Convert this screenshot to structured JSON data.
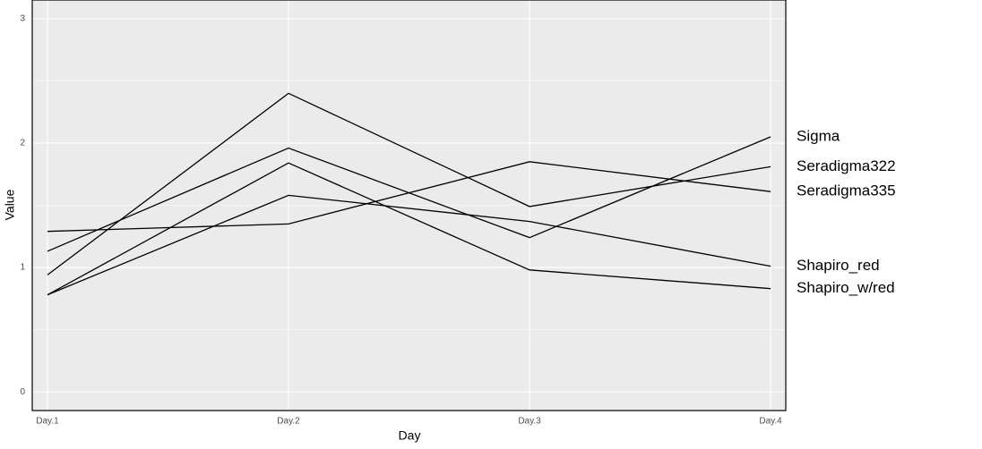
{
  "chart_data": {
    "type": "line",
    "x_label": "Day",
    "y_label": "Value",
    "categories": [
      "Day.1",
      "Day.2",
      "Day.3",
      "Day.4"
    ],
    "series": [
      {
        "name": "Sigma",
        "color": "#000000",
        "values": [
          1.13,
          1.96,
          1.24,
          2.05
        ]
      },
      {
        "name": "Seradigma322",
        "color": "#000000",
        "values": [
          0.94,
          2.4,
          1.49,
          1.81
        ]
      },
      {
        "name": "Seradigma335",
        "color": "#000000",
        "values": [
          1.29,
          1.35,
          1.85,
          1.61
        ]
      },
      {
        "name": "Shapiro_red",
        "color": "#000000",
        "values": [
          0.78,
          1.58,
          1.37,
          1.01
        ]
      },
      {
        "name": "Shapiro_w/red",
        "color": "#000000",
        "values": [
          0.78,
          1.84,
          0.98,
          0.83
        ]
      }
    ],
    "ylim": [
      -0.15,
      3.15
    ],
    "yticks": [
      0,
      1,
      2,
      3
    ],
    "grid": true
  }
}
